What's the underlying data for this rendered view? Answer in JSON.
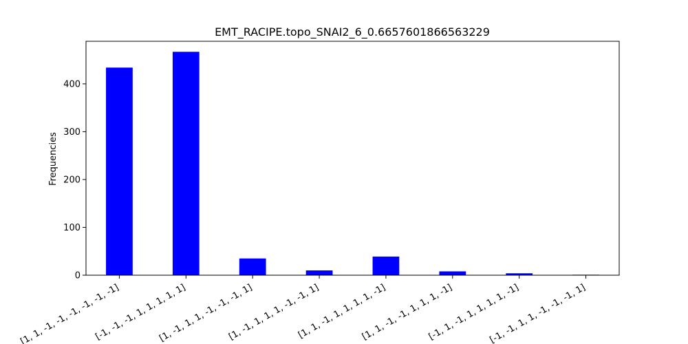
{
  "chart_data": {
    "type": "bar",
    "title": "EMT_RACIPE.topo_SNAI2_6_0.6657601866563229",
    "xlabel": "",
    "ylabel": "Frequencies",
    "categories": [
      "[1, 1, -1, -1, -1, -1, -1, -1]",
      "[-1, -1, -1, 1, 1, 1, 1, 1]",
      "[1, -1, 1, 1, -1, -1, -1, 1]",
      "[1, -1, 1, 1, 1, -1, -1, 1]",
      "[1, 1, -1, 1, 1, 1, 1, -1]",
      "[1, 1, -1, -1, 1, 1, 1, -1]",
      "[-1, 1, -1, 1, 1, 1, 1, -1]",
      "[-1, -1, 1, 1, -1, -1, -1, 1]"
    ],
    "values": [
      434,
      467,
      35,
      10,
      39,
      8,
      4,
      1
    ],
    "ylim": [
      0,
      489
    ],
    "yticks": [
      0,
      100,
      200,
      300,
      400
    ],
    "bar_color": "#0000ff",
    "grid": false,
    "legend": "none"
  }
}
